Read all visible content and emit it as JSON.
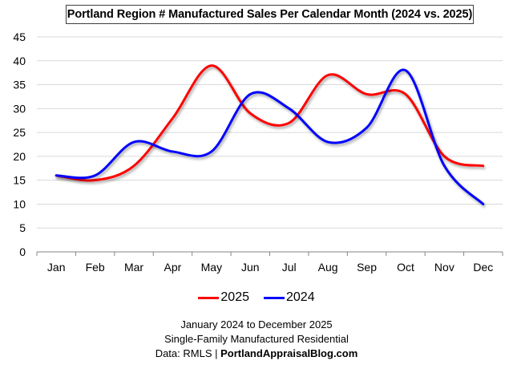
{
  "chart_data": {
    "type": "line",
    "title": "Portland Region # Manufactured Sales Per Calendar Month (2024 vs. 2025)",
    "xlabel": "",
    "ylabel": "",
    "categories": [
      "Jan",
      "Feb",
      "Mar",
      "Apr",
      "May",
      "Jun",
      "Jul",
      "Aug",
      "Sep",
      "Oct",
      "Nov",
      "Dec"
    ],
    "ylim": [
      0,
      45
    ],
    "yticks": [
      "0",
      "5",
      "10",
      "15",
      "20",
      "25",
      "30",
      "35",
      "40",
      "45"
    ],
    "grid": true,
    "smooth": true,
    "legend_position": "bottom",
    "series": [
      {
        "name": "2025",
        "color": "#ff0000",
        "values": [
          16,
          15,
          18,
          28,
          39,
          29,
          27,
          37,
          33,
          33,
          20,
          18
        ]
      },
      {
        "name": "2024",
        "color": "#0000ff",
        "values": [
          16,
          16,
          23,
          21,
          21,
          33,
          30,
          23,
          26,
          38,
          18,
          10
        ]
      }
    ]
  },
  "footer": {
    "line1": "January 2024 to December 2025",
    "line2": "Single-Family Manufactured Residential",
    "line3_prefix": "Data: RMLS | ",
    "line3_bold": "PortlandAppraisalBlog.com"
  }
}
